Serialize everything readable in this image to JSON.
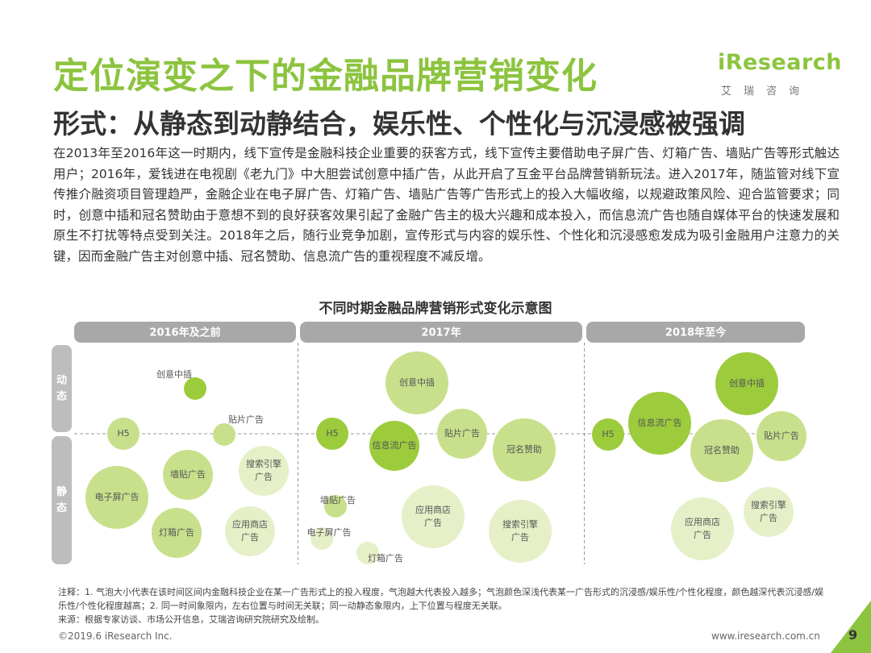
{
  "header": {
    "title": "定位演变之下的金融品牌营销变化",
    "subtitle": "形式：从静态到动静结合，娱乐性、个性化与沉浸感被强调",
    "logo_word": "iResearch",
    "logo_cn": "艾瑞咨询"
  },
  "body_text": "在2013年至2016年这一时期内，线下宣传是金融科技企业重要的获客方式，线下宣传主要借助电子屏广告、灯箱广告、墙贴广告等形式触达用户；2016年，爱钱进在电视剧《老九门》中大胆尝试创意中插广告，从此开启了互金平台品牌营销新玩法。进入2017年，随监管对线下宣传推介融资项目管理趋严，金融企业在电子屏广告、灯箱广告、墙贴广告等广告形式上的投入大幅收缩，以规避政策风险、迎合监管要求；同时，创意中插和冠名赞助由于意想不到的良好获客效果引起了金融广告主的极大兴趣和成本投入，而信息流广告也随自媒体平台的快速发展和原生不打扰等特点受到关注。2018年之后，随行业竞争加剧，宣传形式与内容的娱乐性、个性化和沉浸感愈发成为吸引金融用户注意力的关键，因而金融广告主对创意中插、冠名赞助、信息流广告的重视程度不减反增。",
  "diagram": {
    "title": "不同时期金融品牌营销形式变化示意图",
    "columns": [
      "2016年及之前",
      "2017年",
      "2018年至今"
    ],
    "rows": [
      "动态",
      "静态"
    ],
    "colors": {
      "header_fill": "#a8a8a8",
      "row_fill": "#bdbdbd",
      "bubble_light": "#e6f0c8",
      "bubble_mid": "#c8e08c",
      "bubble_dark": "#9ccc3c",
      "dash": "#999999"
    },
    "periods": [
      {
        "period": "2016年及之前",
        "bubbles": [
          {
            "label": "创意中插",
            "size": 1,
            "intensity": 3
          },
          {
            "label": "H5",
            "size": 2,
            "intensity": 2
          },
          {
            "label": "贴片广告",
            "size": 1,
            "intensity": 2
          },
          {
            "label": "墙贴广告",
            "size": 3,
            "intensity": 2
          },
          {
            "label": "搜索引擎广告",
            "size": 3,
            "intensity": 1
          },
          {
            "label": "电子屏广告",
            "size": 4,
            "intensity": 2
          },
          {
            "label": "灯箱广告",
            "size": 3,
            "intensity": 2
          },
          {
            "label": "应用商店广告",
            "size": 3,
            "intensity": 1
          }
        ]
      },
      {
        "period": "2017年",
        "bubbles": [
          {
            "label": "创意中插",
            "size": 4,
            "intensity": 2
          },
          {
            "label": "H5",
            "size": 2,
            "intensity": 3
          },
          {
            "label": "信息流广告",
            "size": 3,
            "intensity": 3
          },
          {
            "label": "贴片广告",
            "size": 3,
            "intensity": 2
          },
          {
            "label": "冠名赞助",
            "size": 4,
            "intensity": 2
          },
          {
            "label": "墙贴广告",
            "size": 1,
            "intensity": 2
          },
          {
            "label": "应用商店广告",
            "size": 4,
            "intensity": 1
          },
          {
            "label": "电子屏广告",
            "size": 1,
            "intensity": 1
          },
          {
            "label": "灯箱广告",
            "size": 1,
            "intensity": 1
          },
          {
            "label": "搜索引擎广告",
            "size": 4,
            "intensity": 1
          }
        ]
      },
      {
        "period": "2018年至今",
        "bubbles": [
          {
            "label": "创意中插",
            "size": 4,
            "intensity": 3
          },
          {
            "label": "H5",
            "size": 2,
            "intensity": 3
          },
          {
            "label": "信息流广告",
            "size": 4,
            "intensity": 3
          },
          {
            "label": "冠名赞助",
            "size": 4,
            "intensity": 2
          },
          {
            "label": "贴片广告",
            "size": 3,
            "intensity": 2
          },
          {
            "label": "搜索引擎广告",
            "size": 3,
            "intensity": 1
          },
          {
            "label": "应用商店广告",
            "size": 4,
            "intensity": 1
          }
        ]
      }
    ]
  },
  "notes": {
    "line1": "注释：1. 气泡大小代表在该时间区间内金融科技企业在某一广告形式上的投入程度，气泡越大代表投入越多；气泡颜色深浅代表某一广告形式的沉浸感/娱乐性/个性化程度，颜色越深代表沉浸感/娱乐性/个性化程度越高；2. 同一时间象限内，左右位置与时间无关联；同一动静态象限内，上下位置与程度无关联。",
    "line2": "来源：根据专家访谈、市场公开信息，艾瑞咨询研究院研究及绘制。"
  },
  "footer": {
    "copyright": "©2019.6 iResearch Inc.",
    "url": "www.iresearch.com.cn",
    "page": "9"
  }
}
